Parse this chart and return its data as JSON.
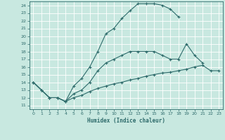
{
  "xlabel": "Humidex (Indice chaleur)",
  "xlim": [
    -0.5,
    23.5
  ],
  "ylim": [
    10.5,
    24.5
  ],
  "yticks": [
    11,
    12,
    13,
    14,
    15,
    16,
    17,
    18,
    19,
    20,
    21,
    22,
    23,
    24
  ],
  "xticks": [
    0,
    1,
    2,
    3,
    4,
    5,
    6,
    7,
    8,
    9,
    10,
    11,
    12,
    13,
    14,
    15,
    16,
    17,
    18,
    19,
    20,
    21,
    22,
    23
  ],
  "bg_color": "#c8e8e0",
  "line_color": "#2e6b6b",
  "grid_color": "#ffffff",
  "line1_x": [
    0,
    1,
    2,
    3,
    4,
    5,
    6,
    7,
    8,
    9,
    10,
    11,
    12,
    13,
    14,
    15,
    16,
    17,
    18
  ],
  "line1_y": [
    14,
    13,
    12,
    12,
    11.5,
    13.5,
    14.5,
    16,
    18,
    20.3,
    21,
    22.3,
    23.3,
    24.2,
    24.2,
    24.2,
    24.0,
    23.5,
    22.5
  ],
  "line2_x": [
    0,
    1,
    2,
    3,
    4,
    5,
    6,
    7,
    8,
    9,
    10,
    11,
    12,
    13,
    14,
    15,
    16,
    17,
    18,
    19,
    20,
    21
  ],
  "line2_y": [
    14,
    13,
    12,
    12,
    11.5,
    12.5,
    13,
    14,
    15.5,
    16.5,
    17,
    17.5,
    18,
    18,
    18,
    18,
    17.5,
    17,
    17,
    19,
    17.5,
    16.5
  ],
  "line3_x": [
    0,
    1,
    2,
    3,
    4,
    5,
    6,
    7,
    8,
    9,
    10,
    11,
    12,
    13,
    14,
    15,
    16,
    17,
    18,
    19,
    20,
    21,
    22,
    23
  ],
  "line3_y": [
    14,
    13,
    12,
    12,
    11.5,
    12,
    12.3,
    12.8,
    13.2,
    13.5,
    13.8,
    14,
    14.3,
    14.5,
    14.8,
    15,
    15.2,
    15.3,
    15.5,
    15.7,
    16,
    16.2,
    15.5,
    15.5
  ]
}
